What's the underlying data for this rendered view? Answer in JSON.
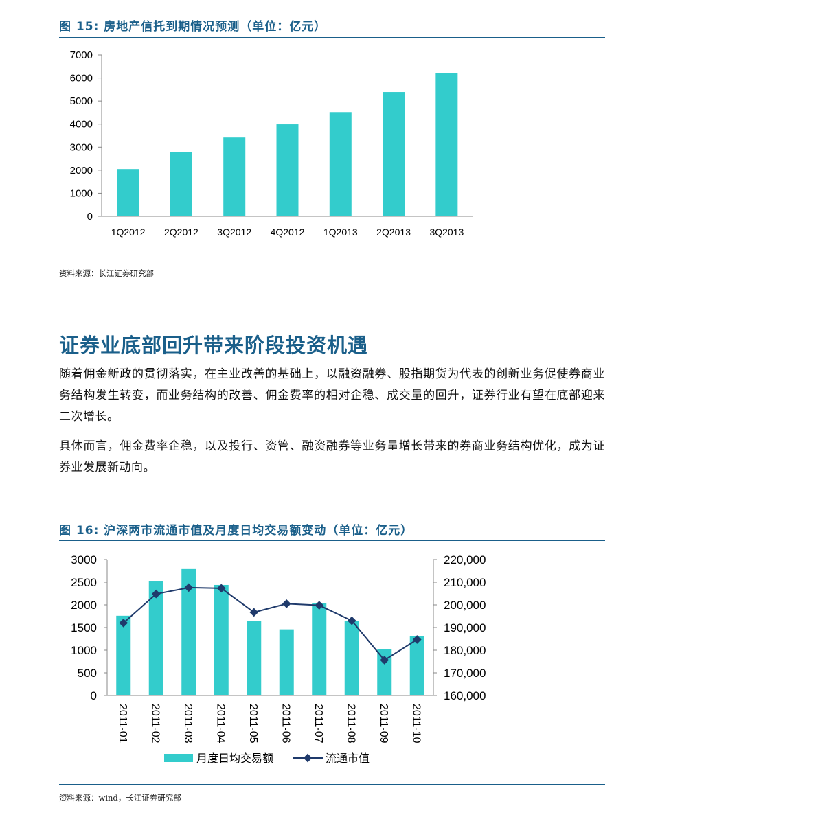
{
  "figure15": {
    "title": "图 15:  房地产信托到期情况预测（单位：亿元）",
    "source": "资料来源：长江证券研究部"
  },
  "section": {
    "title": "证券业底部回升带来阶段投资机遇",
    "paragraphs": [
      "随着佣金新政的贯彻落实，在主业改善的基础上，以融资融券、股指期货为代表的创新业务促使券商业务结构发生转变，而业务结构的改善、佣金费率的相对企稳、成交量的回升，证券行业有望在底部迎来二次增长。",
      "具体而言，佣金费率企稳，以及投行、资管、融资融券等业务量增长带来的券商业务结构优化，成为证券业发展新动向。"
    ]
  },
  "figure16": {
    "title": "图 16:  沪深两市流通市值及月度日均交易额变动（单位：亿元）",
    "source": "资料来源：wind，长江证券研究部"
  },
  "chart_data": [
    {
      "type": "bar",
      "categories": [
        "1Q2012",
        "2Q2012",
        "3Q2012",
        "4Q2012",
        "1Q2013",
        "2Q2013",
        "3Q2013"
      ],
      "values": [
        2050,
        2800,
        3420,
        3990,
        4520,
        5390,
        6220
      ],
      "ylim": [
        0,
        7000
      ],
      "yticks": [
        "0",
        "1000",
        "2000",
        "3000",
        "4000",
        "5000",
        "6000",
        "7000"
      ],
      "color": "#33cccc",
      "grid": false
    },
    {
      "type": "bar+line",
      "categories": [
        "2011-01",
        "2011-02",
        "2011-03",
        "2011-04",
        "2011-05",
        "2011-06",
        "2011-07",
        "2011-08",
        "2011-09",
        "2011-10"
      ],
      "series": [
        {
          "name": "月度日均交易额",
          "type": "bar",
          "axis": "left",
          "values": [
            1760,
            2530,
            2790,
            2440,
            1640,
            1460,
            2040,
            1650,
            1030,
            1310
          ],
          "color": "#33cccc"
        },
        {
          "name": "流通市值",
          "type": "line",
          "axis": "right",
          "values": [
            192000,
            204800,
            207600,
            207300,
            196700,
            200500,
            199800,
            193000,
            175600,
            184700
          ],
          "color": "#1f3a6b"
        }
      ],
      "ylim_left": [
        0,
        3000
      ],
      "yticks_left": [
        "0",
        "500",
        "1000",
        "1500",
        "2000",
        "2500",
        "3000"
      ],
      "ylim_right": [
        160000,
        220000
      ],
      "yticks_right": [
        "160,000",
        "170,000",
        "180,000",
        "190,000",
        "200,000",
        "210,000",
        "220,000"
      ],
      "legend_position": "bottom",
      "grid": false
    }
  ]
}
